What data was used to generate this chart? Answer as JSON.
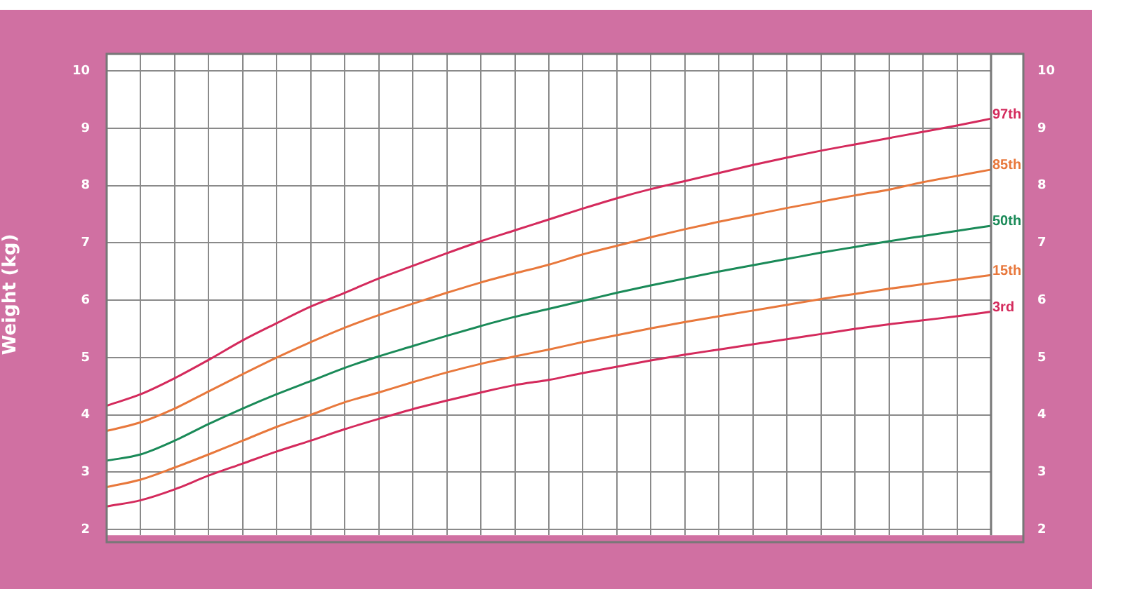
{
  "chart_data": {
    "type": "line",
    "ylabel": "Weight (kg)",
    "categories": [
      null,
      null,
      null,
      null,
      null,
      null,
      null,
      null,
      null,
      null,
      null,
      null,
      null,
      null,
      null,
      null,
      null,
      null,
      null,
      null,
      null,
      null,
      null,
      null,
      null,
      null,
      null
    ],
    "series": [
      {
        "name": "97th",
        "color": "#d42a5c",
        "values": [
          4.16,
          4.36,
          4.64,
          4.96,
          5.3,
          5.6,
          5.89,
          6.13,
          6.38,
          6.6,
          6.82,
          7.03,
          7.22,
          7.41,
          7.6,
          7.78,
          7.94,
          8.08,
          8.22,
          8.36,
          8.49,
          8.61,
          8.72,
          8.83,
          8.94,
          9.05,
          9.17
        ]
      },
      {
        "name": "85th",
        "color": "#e8783c",
        "values": [
          3.72,
          3.87,
          4.11,
          4.41,
          4.71,
          5.0,
          5.27,
          5.52,
          5.74,
          5.94,
          6.13,
          6.31,
          6.47,
          6.62,
          6.8,
          6.95,
          7.1,
          7.24,
          7.37,
          7.49,
          7.61,
          7.72,
          7.83,
          7.93,
          8.06,
          8.17,
          8.28
        ]
      },
      {
        "name": "50th",
        "color": "#1a8a58",
        "values": [
          3.2,
          3.31,
          3.55,
          3.84,
          4.11,
          4.36,
          4.59,
          4.82,
          5.02,
          5.2,
          5.38,
          5.55,
          5.71,
          5.85,
          5.99,
          6.13,
          6.26,
          6.38,
          6.5,
          6.61,
          6.72,
          6.83,
          6.93,
          7.03,
          7.12,
          7.21,
          7.3
        ]
      },
      {
        "name": "15th",
        "color": "#e8783c",
        "values": [
          2.74,
          2.87,
          3.08,
          3.31,
          3.55,
          3.79,
          4.0,
          4.22,
          4.39,
          4.57,
          4.74,
          4.89,
          5.02,
          5.14,
          5.27,
          5.39,
          5.51,
          5.62,
          5.72,
          5.82,
          5.92,
          6.02,
          6.11,
          6.2,
          6.28,
          6.36,
          6.44
        ]
      },
      {
        "name": "3rd",
        "color": "#d42a5c",
        "values": [
          2.4,
          2.51,
          2.7,
          2.94,
          3.15,
          3.36,
          3.55,
          3.75,
          3.93,
          4.1,
          4.25,
          4.39,
          4.52,
          4.61,
          4.73,
          4.84,
          4.95,
          5.05,
          5.14,
          5.23,
          5.32,
          5.41,
          5.5,
          5.58,
          5.65,
          5.72,
          5.8
        ]
      }
    ],
    "ylim": [
      1.9,
      10.3
    ],
    "yticks": [
      2,
      3,
      4,
      5,
      6,
      7,
      8,
      9,
      10
    ],
    "y2lim": [
      1.9,
      10.3
    ],
    "y2ticks": [
      2,
      3,
      4,
      5,
      6,
      7,
      8,
      9,
      10
    ],
    "tick_labels": "y",
    "grid": true,
    "legend": false,
    "marker": "none",
    "line_style": "solid"
  }
}
